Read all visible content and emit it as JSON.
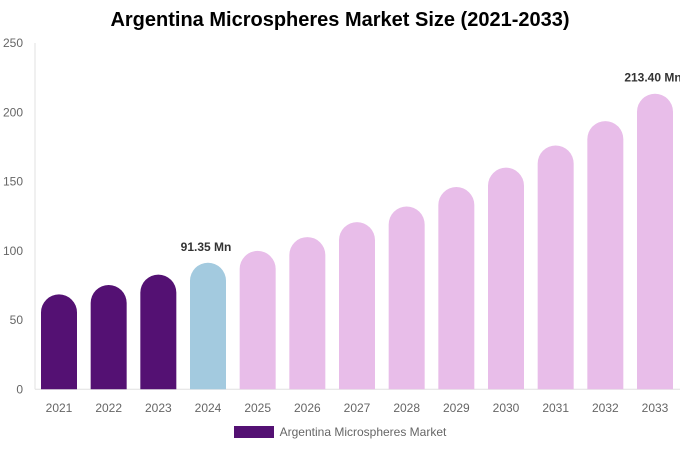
{
  "chart_data": {
    "type": "bar",
    "title": "Argentina Microspheres Market Size (2021-2033)",
    "categories": [
      "2021",
      "2022",
      "2023",
      "2024",
      "2025",
      "2026",
      "2027",
      "2028",
      "2029",
      "2030",
      "2031",
      "2032",
      "2033"
    ],
    "series": [
      {
        "name": "Argentina Microspheres Market",
        "values": [
          68.5,
          75.3,
          82.8,
          91.35,
          99.9,
          109.9,
          120.7,
          132,
          146,
          160,
          176,
          193.6,
          213.4
        ]
      }
    ],
    "bar_colors": [
      "#541173",
      "#541173",
      "#541173",
      "#a3cadf",
      "#e8bde9",
      "#e8bde9",
      "#e8bde9",
      "#e8bde9",
      "#e8bde9",
      "#e8bde9",
      "#e8bde9",
      "#e8bde9",
      "#e8bde9"
    ],
    "data_labels": [
      {
        "index": 3,
        "text": "91.35 Mn"
      },
      {
        "index": 12,
        "text": "213.40 Mn"
      }
    ],
    "yticks": [
      0,
      50,
      100,
      150,
      200,
      250
    ],
    "ylim": [
      0,
      250
    ],
    "xlabel": "",
    "ylabel": "",
    "grid": false,
    "legend": {
      "placement": "bottom",
      "color": "#541173"
    }
  }
}
